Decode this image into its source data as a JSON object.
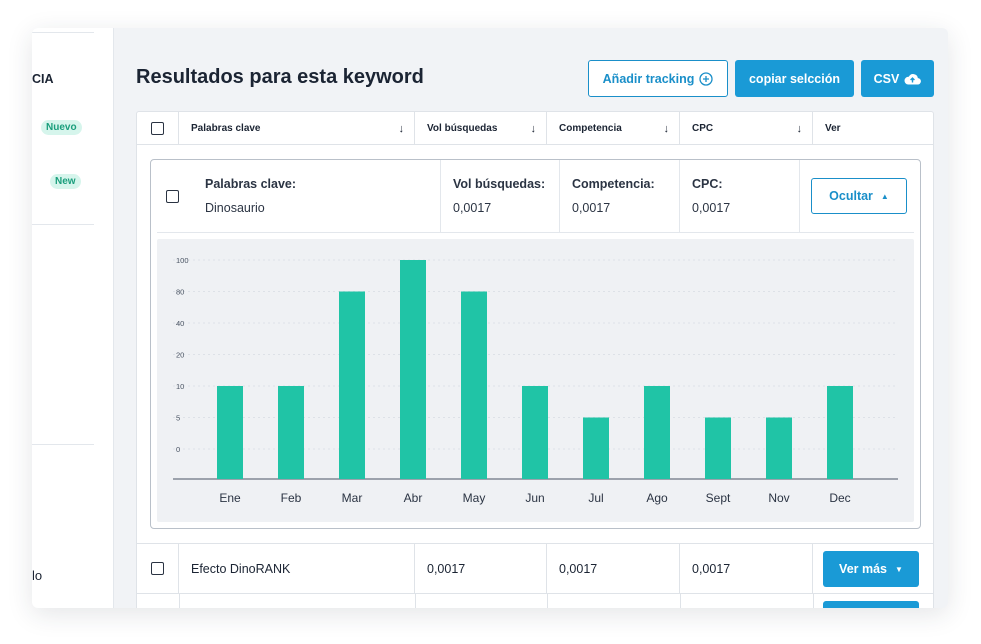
{
  "sidebar": {
    "partial_heading": "CIA",
    "badge_nuevo": "Nuevo",
    "badge_new": "New",
    "partial_bottom": "lo"
  },
  "header": {
    "title": "Resultados para esta keyword",
    "add_tracking": "Añadir tracking",
    "copy_selection": "copiar selcción",
    "csv": "CSV"
  },
  "table": {
    "columns": [
      {
        "label": "Palabras clave",
        "sort_icon": "arrow-down-icon"
      },
      {
        "label": "Vol búsquedas",
        "sort_icon": "arrow-down-icon"
      },
      {
        "label": "Competencia",
        "sort_icon": "arrow-down-icon"
      },
      {
        "label": "CPC",
        "sort_icon": "arrow-down-icon"
      },
      {
        "label": "Ver"
      }
    ],
    "expanded": {
      "keyword_label": "Palabras clave:",
      "keyword_value": "Dinosaurio",
      "vol_label": "Vol búsquedas:",
      "vol_value": "0,0017",
      "comp_label": "Competencia:",
      "comp_value": "0,0017",
      "cpc_label": "CPC:",
      "cpc_value": "0,0017",
      "hide_button": "Ocultar"
    },
    "rows": [
      {
        "keyword": "Efecto DinoRANK",
        "vol": "0,0017",
        "comp": "0,0017",
        "cpc": "0,0017",
        "action": "Ver más"
      }
    ]
  },
  "colors": {
    "accent": "#1a9ad6",
    "bar": "#20c4a6",
    "badge_bg": "#d6f5ec",
    "badge_text": "#1a9e7c"
  },
  "chart_data": {
    "type": "bar",
    "categories": [
      "Ene",
      "Feb",
      "Mar",
      "Abr",
      "May",
      "Jun",
      "Jul",
      "Ago",
      "Sept",
      "Nov",
      "Dec"
    ],
    "y_ticks": [
      "100",
      "80",
      "40",
      "20",
      "10",
      "5",
      "0"
    ],
    "values": [
      10,
      10,
      80,
      100,
      80,
      10,
      5,
      10,
      5,
      5,
      10
    ],
    "grid": true
  }
}
